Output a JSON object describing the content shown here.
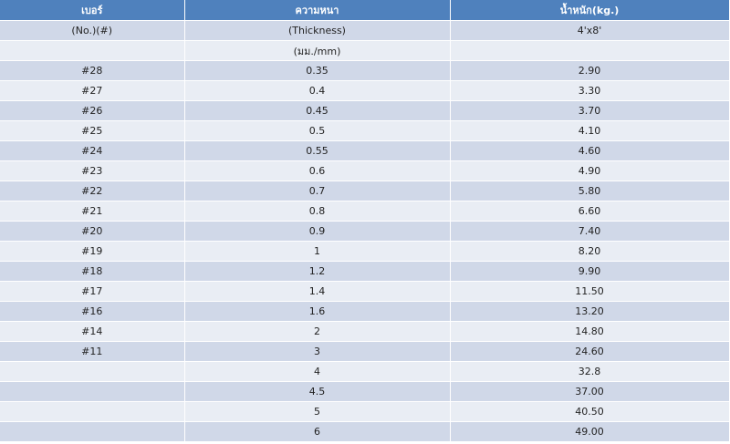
{
  "header": {
    "col1": "เบอร์",
    "col2": "ความหนา",
    "col3": "น้ำหนัก(kg.)"
  },
  "subheader": {
    "row1": {
      "col1": "(No.)(#)",
      "col2": "(Thickness)",
      "col3": "4'x8'"
    },
    "row2": {
      "col1": "",
      "col2": "(มม./mm)",
      "col3": ""
    }
  },
  "rows": [
    {
      "no": "#28",
      "thickness": "0.35",
      "weight": "2.90"
    },
    {
      "no": "#27",
      "thickness": "0.4",
      "weight": "3.30"
    },
    {
      "no": "#26",
      "thickness": "0.45",
      "weight": "3.70"
    },
    {
      "no": "#25",
      "thickness": "0.5",
      "weight": "4.10"
    },
    {
      "no": "#24",
      "thickness": "0.55",
      "weight": "4.60"
    },
    {
      "no": "#23",
      "thickness": "0.6",
      "weight": "4.90"
    },
    {
      "no": "#22",
      "thickness": "0.7",
      "weight": "5.80"
    },
    {
      "no": "#21",
      "thickness": "0.8",
      "weight": "6.60"
    },
    {
      "no": "#20",
      "thickness": "0.9",
      "weight": "7.40"
    },
    {
      "no": "#19",
      "thickness": "1",
      "weight": "8.20"
    },
    {
      "no": "#18",
      "thickness": "1.2",
      "weight": "9.90"
    },
    {
      "no": "#17",
      "thickness": "1.4",
      "weight": "11.50"
    },
    {
      "no": "#16",
      "thickness": "1.6",
      "weight": "13.20"
    },
    {
      "no": "#14",
      "thickness": "2",
      "weight": "14.80"
    },
    {
      "no": "#11",
      "thickness": "3",
      "weight": "24.60"
    },
    {
      "no": "",
      "thickness": "4",
      "weight": "32.8"
    },
    {
      "no": "",
      "thickness": "4.5",
      "weight": "37.00"
    },
    {
      "no": "",
      "thickness": "5",
      "weight": "40.50"
    },
    {
      "no": "",
      "thickness": "6",
      "weight": "49.00"
    }
  ]
}
